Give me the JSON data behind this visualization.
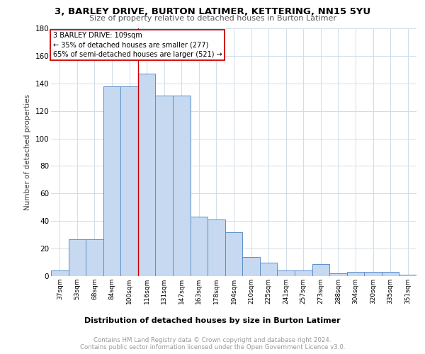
{
  "title1": "3, BARLEY DRIVE, BURTON LATIMER, KETTERING, NN15 5YU",
  "title2": "Size of property relative to detached houses in Burton Latimer",
  "xlabel": "Distribution of detached houses by size in Burton Latimer",
  "ylabel": "Number of detached properties",
  "categories": [
    "37sqm",
    "53sqm",
    "68sqm",
    "84sqm",
    "100sqm",
    "116sqm",
    "131sqm",
    "147sqm",
    "163sqm",
    "178sqm",
    "194sqm",
    "210sqm",
    "225sqm",
    "241sqm",
    "257sqm",
    "273sqm",
    "288sqm",
    "304sqm",
    "320sqm",
    "335sqm",
    "351sqm"
  ],
  "values": [
    4,
    27,
    27,
    138,
    138,
    147,
    131,
    131,
    43,
    41,
    32,
    14,
    10,
    4,
    4,
    9,
    2,
    3,
    3,
    3,
    1
  ],
  "bar_color": "#c6d9f0",
  "bar_edge_color": "#5b8fc9",
  "property_line_x": 4.5,
  "annotation_line1": "3 BARLEY DRIVE: 109sqm",
  "annotation_line2": "← 35% of detached houses are smaller (277)",
  "annotation_line3": "65% of semi-detached houses are larger (521) →",
  "annotation_box_color": "#ffffff",
  "annotation_box_edge_color": "#cc0000",
  "property_line_color": "#cc0000",
  "grid_color": "#d0dde8",
  "background_color": "#ffffff",
  "footer_text1": "Contains HM Land Registry data © Crown copyright and database right 2024.",
  "footer_text2": "Contains public sector information licensed under the Open Government Licence v3.0.",
  "ylim": [
    0,
    180
  ],
  "yticks": [
    0,
    20,
    40,
    60,
    80,
    100,
    120,
    140,
    160,
    180
  ]
}
